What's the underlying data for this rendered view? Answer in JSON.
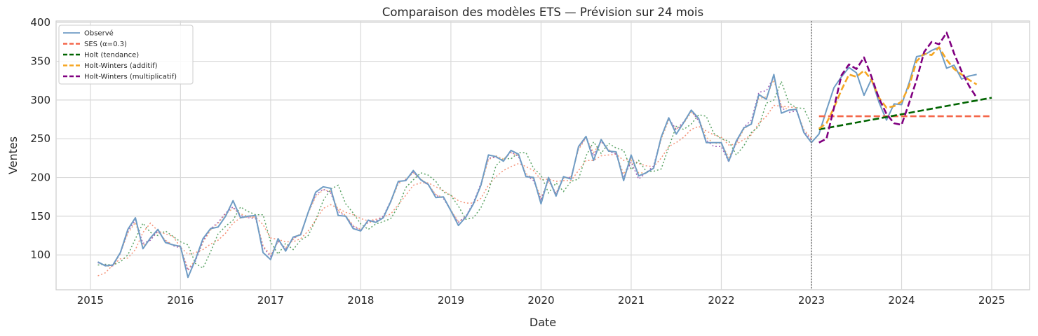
{
  "chart_data": {
    "type": "line",
    "title": "Comparaison des modèles ETS — Prévision sur 24 mois",
    "xlabel": "Date",
    "ylabel": "Ventes",
    "xlim": [
      2014.62,
      2025.42
    ],
    "ylim": [
      55,
      402
    ],
    "x_ticks": [
      2015,
      2016,
      2017,
      2018,
      2019,
      2020,
      2021,
      2022,
      2023,
      2024,
      2025
    ],
    "x_tick_labels": [
      "2015",
      "2016",
      "2017",
      "2018",
      "2019",
      "2020",
      "2021",
      "2022",
      "2023",
      "2024",
      "2025"
    ],
    "y_ticks": [
      100,
      150,
      200,
      250,
      300,
      350,
      400
    ],
    "y_tick_labels": [
      "100",
      "150",
      "200",
      "250",
      "300",
      "350",
      "400"
    ],
    "grid": true,
    "legend_position": "top-left",
    "forecast_start": 2023,
    "observed": {
      "name": "Observé",
      "color": "#6f9cc4",
      "start": 2015.083,
      "values": [
        91,
        86,
        87,
        103,
        133,
        148,
        108,
        122,
        133,
        116,
        113,
        111,
        71,
        94,
        121,
        134,
        136,
        150,
        170,
        148,
        150,
        151,
        103,
        94,
        121,
        105,
        123,
        126,
        155,
        181,
        188,
        186,
        151,
        150,
        134,
        131,
        145,
        142,
        148,
        169,
        195,
        196,
        209,
        197,
        191,
        174,
        175,
        157,
        138,
        149,
        166,
        190,
        229,
        227,
        221,
        235,
        230,
        201,
        200,
        166,
        200,
        176,
        201,
        198,
        240,
        253,
        222,
        249,
        234,
        233,
        196,
        229,
        202,
        206,
        212,
        252,
        277,
        256,
        271,
        287,
        276,
        245,
        245,
        245,
        221,
        247,
        264,
        269,
        307,
        301,
        333,
        283,
        287,
        288,
        258,
        245,
        256,
        287,
        316,
        330,
        342,
        335,
        306,
        327,
        297,
        274,
        295,
        294,
        322,
        356,
        358,
        364,
        368,
        341,
        345,
        327,
        331,
        333
      ]
    },
    "fitted_series": [
      {
        "name": "SES (α=0.3)",
        "color": "#f4876a",
        "start": 2015.083,
        "values": [
          73,
          77,
          87,
          95,
          96,
          107,
          129,
          141,
          131,
          127,
          124,
          110,
          101,
          103,
          107,
          114,
          119,
          128,
          141,
          148,
          149,
          149,
          139,
          122,
          120,
          117,
          117,
          121,
          131,
          145,
          160,
          165,
          160,
          155,
          152,
          147,
          144,
          146,
          149,
          153,
          165,
          177,
          190,
          193,
          193,
          188,
          183,
          177,
          170,
          167,
          167,
          173,
          190,
          201,
          209,
          214,
          218,
          214,
          209,
          197,
          198,
          195,
          196,
          196,
          209,
          222,
          222,
          228,
          229,
          230,
          222,
          224,
          218,
          215,
          214,
          225,
          240,
          245,
          252,
          262,
          266,
          260,
          255,
          252,
          242,
          243,
          249,
          255,
          270,
          279,
          293,
          292,
          291,
          290
        ]
      },
      {
        "name": "Holt (tendance)",
        "color": "#4a9a55",
        "start": 2015.083,
        "values": [
          87,
          88,
          87,
          91,
          100,
          121,
          141,
          129,
          125,
          131,
          124,
          117,
          113,
          89,
          83,
          104,
          127,
          137,
          145,
          162,
          156,
          152,
          152,
          117,
          101,
          115,
          107,
          119,
          125,
          145,
          170,
          185,
          190,
          166,
          154,
          140,
          133,
          140,
          143,
          147,
          163,
          187,
          197,
          206,
          203,
          195,
          181,
          177,
          163,
          146,
          148,
          161,
          182,
          215,
          225,
          224,
          232,
          232,
          212,
          203,
          180,
          193,
          182,
          195,
          198,
          228,
          246,
          231,
          244,
          238,
          235,
          210,
          222,
          208,
          208,
          211,
          239,
          266,
          262,
          269,
          281,
          279,
          257,
          250,
          247,
          229,
          241,
          258,
          266,
          296,
          300,
          324,
          296,
          290,
          289,
          268
        ]
      },
      {
        "name": "Holt-Winters (additif)",
        "color": "#f3a46a",
        "start": 2015.083,
        "values": [
          91,
          86,
          85,
          103,
          128,
          142,
          112,
          120,
          130,
          119,
          113,
          110,
          82,
          93,
          116,
          132,
          141,
          153,
          160,
          153,
          150,
          148,
          112,
          100,
          117,
          109,
          120,
          128,
          154,
          175,
          184,
          182,
          158,
          151,
          138,
          133,
          142,
          143,
          149,
          168,
          192,
          198,
          206,
          198,
          191,
          178,
          174,
          158,
          143,
          149,
          166,
          189,
          223,
          228,
          224,
          232,
          228,
          205,
          198,
          174,
          195,
          180,
          199,
          201,
          236,
          251,
          232,
          246,
          236,
          231,
          204,
          222,
          206,
          206,
          213,
          249,
          274,
          262,
          270,
          284,
          276,
          252,
          244,
          244,
          226,
          244,
          262,
          271,
          302,
          304,
          326,
          292,
          287,
          287,
          262,
          250
        ]
      },
      {
        "name": "Holt-Winters (multiplicatif)",
        "color": "#9a55b5",
        "start": 2015.083,
        "values": [
          90,
          87,
          86,
          102,
          130,
          145,
          115,
          119,
          131,
          118,
          112,
          109,
          80,
          92,
          118,
          134,
          142,
          154,
          162,
          151,
          148,
          147,
          110,
          98,
          118,
          108,
          121,
          127,
          155,
          177,
          185,
          180,
          156,
          150,
          137,
          132,
          143,
          144,
          150,
          170,
          194,
          197,
          207,
          197,
          190,
          177,
          173,
          157,
          142,
          150,
          168,
          192,
          225,
          226,
          222,
          233,
          227,
          203,
          196,
          172,
          197,
          179,
          200,
          200,
          238,
          252,
          228,
          247,
          234,
          230,
          200,
          220,
          198,
          206,
          215,
          252,
          276,
          262,
          272,
          286,
          273,
          248,
          240,
          240,
          220,
          245,
          265,
          274,
          310,
          312,
          330,
          290,
          284,
          286,
          260,
          248
        ]
      }
    ],
    "forecasts": [
      {
        "name": "SES (α=0.3)",
        "color": "#f4674a",
        "x": [
          2023.083,
          2025.0
        ],
        "values": [
          279,
          279
        ]
      },
      {
        "name": "Holt (tendance)",
        "color": "#006400",
        "x": [
          2023.083,
          2025.0
        ],
        "values": [
          262,
          303
        ]
      },
      {
        "name": "Holt-Winters (additif)",
        "color": "#f5a623",
        "start": 2023.083,
        "values": [
          263,
          270,
          290,
          313,
          333,
          330,
          338,
          326,
          303,
          290,
          292,
          298,
          318,
          350,
          360,
          358,
          368,
          352,
          340,
          333,
          326,
          320
        ]
      },
      {
        "name": "Holt-Winters (multiplicatif)",
        "color": "#800080",
        "start": 2023.083,
        "values": [
          245,
          250,
          290,
          332,
          346,
          340,
          355,
          330,
          302,
          282,
          270,
          268,
          296,
          326,
          362,
          375,
          372,
          387,
          360,
          337,
          318,
          303
        ]
      }
    ],
    "legend": [
      {
        "label": "Observé",
        "color": "#6f9cc4",
        "style": "solid"
      },
      {
        "label": "SES (α=0.3)",
        "color": "#f4674a",
        "style": "dashed"
      },
      {
        "label": "Holt (tendance)",
        "color": "#006400",
        "style": "dashed"
      },
      {
        "label": "Holt-Winters (additif)",
        "color": "#f5a623",
        "style": "dashed"
      },
      {
        "label": "Holt-Winters (multiplicatif)",
        "color": "#800080",
        "style": "dashed"
      }
    ]
  }
}
